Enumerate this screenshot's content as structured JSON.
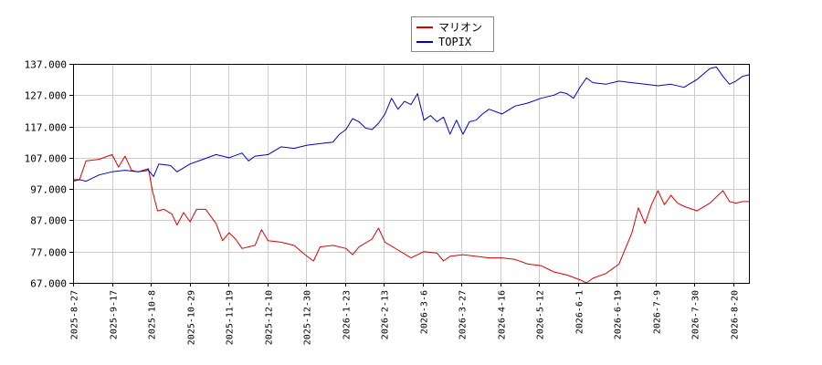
{
  "chart_data": {
    "type": "line",
    "title": "",
    "xlabel": "",
    "ylabel": "",
    "ylim": [
      67,
      137
    ],
    "grid": true,
    "legend_position": "top-center",
    "y_ticks": [
      "67.000",
      "77.000",
      "87.000",
      "97.000",
      "107.000",
      "117.000",
      "127.000",
      "137.000"
    ],
    "x_ticks": [
      "2025-8-27",
      "2025-9-17",
      "2025-10-8",
      "2025-10-29",
      "2025-11-19",
      "2025-12-10",
      "2025-12-30",
      "2026-1-23",
      "2026-2-13",
      "2026-3-6",
      "2026-3-27",
      "2026-4-16",
      "2026-5-12",
      "2026-6-1",
      "2026-6-19",
      "2026-7-9",
      "2026-7-30",
      "2026-8-20"
    ],
    "series": [
      {
        "name": "マリオン",
        "color": "#dd0000",
        "values": [
          [
            0,
            100.0
          ],
          [
            0.5,
            100.0
          ],
          [
            1,
            106.0
          ],
          [
            2,
            106.5
          ],
          [
            3,
            108.0
          ],
          [
            3.5,
            104.0
          ],
          [
            4,
            107.5
          ],
          [
            4.5,
            103.0
          ],
          [
            5,
            102.5
          ],
          [
            5.8,
            103.5
          ],
          [
            6.1,
            96.5
          ],
          [
            6.5,
            90.0
          ],
          [
            7,
            90.5
          ],
          [
            7.6,
            89.0
          ],
          [
            8,
            85.5
          ],
          [
            8.5,
            89.5
          ],
          [
            9,
            86.5
          ],
          [
            9.5,
            90.5
          ],
          [
            10.2,
            90.5
          ],
          [
            11,
            86.0
          ],
          [
            11.5,
            80.5
          ],
          [
            12,
            83.0
          ],
          [
            12.5,
            81.0
          ],
          [
            13,
            78.0
          ],
          [
            14,
            79.0
          ],
          [
            14.5,
            84.0
          ],
          [
            15,
            80.5
          ],
          [
            16,
            80.0
          ],
          [
            17,
            79.0
          ],
          [
            18,
            75.5
          ],
          [
            18.5,
            74.0
          ],
          [
            19,
            78.5
          ],
          [
            20,
            79.0
          ],
          [
            21,
            78.0
          ],
          [
            21.5,
            76.0
          ],
          [
            22,
            78.5
          ],
          [
            23,
            81.0
          ],
          [
            23.5,
            84.5
          ],
          [
            24,
            80.0
          ],
          [
            25,
            77.5
          ],
          [
            26,
            75.0
          ],
          [
            27,
            77.0
          ],
          [
            28,
            76.5
          ],
          [
            28.5,
            74.0
          ],
          [
            29,
            75.5
          ],
          [
            30,
            76.0
          ],
          [
            31,
            75.5
          ],
          [
            32,
            75.0
          ],
          [
            33,
            75.0
          ],
          [
            34,
            74.5
          ],
          [
            35,
            73.0
          ],
          [
            36,
            72.5
          ],
          [
            37,
            70.5
          ],
          [
            38,
            69.5
          ],
          [
            39,
            68.0
          ],
          [
            39.5,
            67.0
          ],
          [
            40,
            68.5
          ],
          [
            41,
            70.0
          ],
          [
            42,
            73.0
          ],
          [
            43,
            83.0
          ],
          [
            43.5,
            91.0
          ],
          [
            44,
            86.0
          ],
          [
            44.5,
            92.0
          ],
          [
            45,
            96.5
          ],
          [
            45.5,
            92.0
          ],
          [
            46,
            95.0
          ],
          [
            46.5,
            92.5
          ],
          [
            47,
            91.5
          ],
          [
            48,
            90.0
          ],
          [
            49,
            92.5
          ],
          [
            50,
            96.5
          ],
          [
            50.5,
            93.0
          ],
          [
            51,
            92.5
          ],
          [
            51.5,
            93.0
          ],
          [
            52,
            93.0
          ]
        ]
      },
      {
        "name": "TOPIX",
        "color": "#0000cc",
        "values": [
          [
            0,
            99.5
          ],
          [
            0.5,
            100.0
          ],
          [
            1,
            99.5
          ],
          [
            2,
            101.5
          ],
          [
            3,
            102.5
          ],
          [
            4,
            103.0
          ],
          [
            5,
            102.5
          ],
          [
            5.8,
            103.0
          ],
          [
            6.2,
            101.0
          ],
          [
            6.6,
            105.0
          ],
          [
            7.5,
            104.5
          ],
          [
            8,
            102.5
          ],
          [
            9,
            105.0
          ],
          [
            10,
            106.5
          ],
          [
            11,
            108.0
          ],
          [
            12,
            107.0
          ],
          [
            13,
            108.5
          ],
          [
            13.5,
            106.0
          ],
          [
            14,
            107.5
          ],
          [
            15,
            108.0
          ],
          [
            16,
            110.5
          ],
          [
            17,
            110.0
          ],
          [
            18,
            111.0
          ],
          [
            19,
            111.5
          ],
          [
            20,
            112.0
          ],
          [
            20.5,
            114.5
          ],
          [
            21,
            116.0
          ],
          [
            21.5,
            119.5
          ],
          [
            22,
            118.5
          ],
          [
            22.5,
            116.5
          ],
          [
            23,
            116.0
          ],
          [
            23.5,
            118.0
          ],
          [
            24,
            121.0
          ],
          [
            24.5,
            126.0
          ],
          [
            25,
            122.5
          ],
          [
            25.5,
            125.0
          ],
          [
            26,
            124.0
          ],
          [
            26.5,
            127.5
          ],
          [
            27,
            119.0
          ],
          [
            27.5,
            120.5
          ],
          [
            28,
            118.5
          ],
          [
            28.5,
            120.0
          ],
          [
            29,
            114.5
          ],
          [
            29.5,
            119.0
          ],
          [
            30,
            114.5
          ],
          [
            30.5,
            118.5
          ],
          [
            31,
            119.0
          ],
          [
            31.5,
            121.0
          ],
          [
            32,
            122.5
          ],
          [
            33,
            121.0
          ],
          [
            34,
            123.5
          ],
          [
            35,
            124.5
          ],
          [
            36,
            126.0
          ],
          [
            37,
            127.0
          ],
          [
            37.5,
            128.0
          ],
          [
            38,
            127.5
          ],
          [
            38.5,
            126.0
          ],
          [
            39,
            129.5
          ],
          [
            39.5,
            132.5
          ],
          [
            40,
            131.0
          ],
          [
            41,
            130.5
          ],
          [
            42,
            131.5
          ],
          [
            43,
            131.0
          ],
          [
            44,
            130.5
          ],
          [
            45,
            130.0
          ],
          [
            46,
            130.5
          ],
          [
            47,
            129.5
          ],
          [
            48,
            132.0
          ],
          [
            49,
            135.5
          ],
          [
            49.5,
            136.0
          ],
          [
            50,
            133.0
          ],
          [
            50.5,
            130.5
          ],
          [
            51,
            131.5
          ],
          [
            51.5,
            133.0
          ],
          [
            52,
            133.5
          ]
        ]
      }
    ],
    "x_range": [
      0,
      52
    ]
  }
}
